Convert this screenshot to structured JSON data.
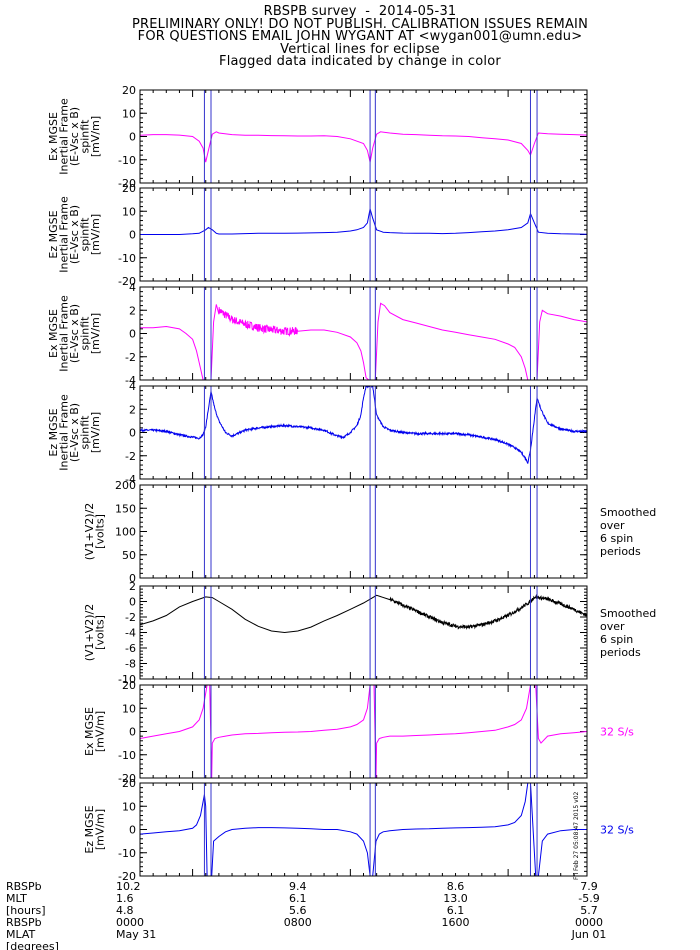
{
  "header": {
    "title": "RBSPB survey  -  2014-05-31",
    "line2": "PRELIMINARY ONLY! DO NOT PUBLISH. CALIBRATION ISSUES REMAIN",
    "line3": "FOR QUESTIONS EMAIL JOHN WYGANT AT <wygan001@umn.edu>",
    "line4": "Vertical lines for eclipse",
    "line5": "Flagged data indicated by change in color"
  },
  "colors": {
    "magenta": "#ff00ff",
    "blue": "#0000ee",
    "black": "#000000",
    "eclipse": "#3333cc"
  },
  "stamp": "Fri Feb 27 05:08:47 2015 v02",
  "eclipse_hours": [
    4.9,
    5.4,
    17.5,
    17.9,
    29.7,
    30.2
  ],
  "chart_data": [
    {
      "type": "line",
      "color": "magenta",
      "ylabel": [
        "Ex MGSE",
        "Inertial Frame",
        "(E-Vsc x B)",
        "spinfit",
        "[mV/m]"
      ],
      "ylim": [
        -20,
        20
      ],
      "yticks": [
        20,
        10,
        0,
        -10,
        -20
      ],
      "side_label": [],
      "series": [
        {
          "x": [
            0,
            1,
            2,
            3,
            4,
            4.5,
            4.8,
            5,
            5.2,
            5.5,
            5.8,
            6,
            7,
            8,
            9,
            10,
            11,
            12,
            13,
            14,
            15,
            16,
            17,
            17.3,
            17.5,
            17.7,
            18,
            18.3,
            19,
            20,
            21,
            22,
            23,
            24,
            25,
            26,
            27,
            28,
            29,
            29.5,
            29.7,
            30,
            30.3,
            31,
            32,
            33,
            34
          ],
          "y": [
            0.5,
            0.8,
            0.8,
            0.6,
            0,
            -2,
            -5,
            -11,
            -6,
            1,
            2,
            1.5,
            0.8,
            0.5,
            0.5,
            0.4,
            0.3,
            0.2,
            0.2,
            0.3,
            0,
            -1,
            -3,
            -6,
            -11,
            -5,
            1,
            2,
            1.5,
            1,
            0.8,
            0.5,
            0.3,
            0.2,
            0,
            -0.5,
            -1,
            -1.5,
            -3,
            -6,
            -8,
            -3,
            1.5,
            1.2,
            1,
            0.8,
            0.6
          ]
        }
      ]
    },
    {
      "type": "line",
      "color": "blue",
      "ylabel": [
        "Ez MGSE",
        "Inertial Frame",
        "(E-Vsc x B)",
        "spinfit",
        "[mV/m]"
      ],
      "ylim": [
        -20,
        20
      ],
      "yticks": [
        20,
        10,
        0,
        -10,
        -20
      ],
      "side_label": [],
      "series": [
        {
          "x": [
            0,
            1,
            2,
            3,
            4,
            4.5,
            5,
            5.2,
            5.5,
            5.8,
            6,
            7,
            8,
            9,
            10,
            11,
            12,
            13,
            14,
            15,
            16,
            16.5,
            17,
            17.3,
            17.5,
            17.7,
            18,
            18.5,
            19,
            20,
            21,
            22,
            23,
            24,
            25,
            26,
            27,
            28,
            29,
            29.5,
            29.7,
            30,
            30.3,
            31,
            32,
            33,
            34
          ],
          "y": [
            0,
            0,
            0,
            0,
            0.3,
            0.5,
            2,
            3,
            2,
            0.5,
            0.2,
            0.2,
            0.4,
            0.5,
            0.5,
            0.5,
            0.6,
            0.7,
            0.8,
            1,
            1.5,
            2,
            3,
            5,
            11,
            7,
            2,
            1,
            0.8,
            0.6,
            0.5,
            0.5,
            0.4,
            0.5,
            0.8,
            1.2,
            1.5,
            2,
            3,
            5,
            9,
            5,
            1,
            0.5,
            0.3,
            0.2,
            0.1
          ]
        }
      ]
    },
    {
      "type": "line",
      "color": "magenta",
      "ylabel": [
        "Ex MGSE",
        "Inertial Frame",
        "(E-Vsc x B)",
        "spinfit",
        "[mV/m]"
      ],
      "ylim": [
        -4,
        4
      ],
      "yticks": [
        4,
        2,
        0,
        -2,
        -4
      ],
      "side_label": [],
      "noisy": [
        6,
        12,
        0.35
      ],
      "series": [
        {
          "x": [
            0,
            1,
            2,
            3,
            3.5,
            4,
            4.3,
            4.6,
            4.8,
            5.4,
            5.6,
            5.8,
            6,
            6.5,
            7,
            8,
            9,
            10,
            11,
            12,
            13,
            14,
            15,
            16,
            16.5,
            16.8,
            17,
            17.2,
            17.4,
            17.9,
            18.1,
            18.3,
            18.6,
            19,
            20,
            21,
            22,
            23,
            24,
            25,
            26,
            27,
            28,
            28.5,
            29,
            29.3,
            29.5,
            30.2,
            30.4,
            30.6,
            31,
            32,
            33,
            34
          ],
          "y": [
            0.5,
            0.5,
            0.6,
            0.4,
            0,
            -0.5,
            -1.5,
            -3,
            -4,
            -4,
            1,
            2.5,
            2,
            1.6,
            1.2,
            0.8,
            0.5,
            0.3,
            0.2,
            0.2,
            0.3,
            0.3,
            0.1,
            -0.3,
            -0.8,
            -1.5,
            -2.5,
            -3.8,
            -4,
            -4,
            1,
            2.6,
            2.4,
            1.8,
            1.2,
            0.9,
            0.6,
            0.3,
            0.1,
            -0.1,
            -0.3,
            -0.5,
            -0.9,
            -1.2,
            -2,
            -3,
            -4,
            -4,
            1,
            2,
            1.7,
            1.5,
            1.2,
            1
          ]
        }
      ]
    },
    {
      "type": "line",
      "color": "blue",
      "ylabel": [
        "Ez MGSE",
        "Inertial Frame",
        "(E-Vsc x B)",
        "spinfit",
        "[mV/m]"
      ],
      "ylim": [
        -4,
        4
      ],
      "yticks": [
        4,
        2,
        0,
        -2,
        -4
      ],
      "side_label": [],
      "noisy": [
        0,
        34,
        0.08
      ],
      "series": [
        {
          "x": [
            0,
            1,
            2,
            3,
            3.5,
            4,
            4.5,
            4.8,
            5,
            5.2,
            5.4,
            5.7,
            6,
            6.5,
            7,
            8,
            9,
            10,
            11,
            12,
            13,
            14,
            15,
            15.5,
            16,
            16.5,
            16.8,
            17,
            17.2,
            17.4,
            17.7,
            18,
            18.5,
            19,
            20,
            21,
            22,
            23,
            24,
            25,
            26,
            27,
            28,
            28.5,
            29,
            29.3,
            29.5,
            29.7,
            30.2,
            30.5,
            31,
            32,
            33,
            34
          ],
          "y": [
            0.2,
            0.2,
            0.1,
            -0.2,
            -0.3,
            -0.4,
            -0.5,
            -0.2,
            0.5,
            2,
            3.5,
            2,
            1,
            0,
            -0.3,
            0.2,
            0.4,
            0.5,
            0.6,
            0.5,
            0.4,
            0.2,
            -0.3,
            -0.4,
            0,
            0.6,
            1.5,
            3,
            4,
            4,
            4,
            1.5,
            0.5,
            0.2,
            0,
            -0.1,
            -0.1,
            -0.1,
            -0.1,
            -0.2,
            -0.4,
            -0.6,
            -1,
            -1.3,
            -1.7,
            -2.2,
            -2.6,
            -1.5,
            3,
            2,
            0.8,
            0.3,
            0.1,
            0.1
          ]
        }
      ]
    },
    {
      "type": "line",
      "color": "black",
      "ylabel": [
        "(V1+V2)/2",
        "[volts]"
      ],
      "ylim": [
        0,
        200
      ],
      "yticks": [
        200,
        150,
        100,
        50,
        0
      ],
      "side_label": [
        "Smoothed",
        "over",
        "6 spin",
        "periods"
      ],
      "series": [
        {
          "x": [
            0,
            34
          ],
          "y": [
            0,
            0
          ]
        }
      ]
    },
    {
      "type": "line",
      "color": "black",
      "ylabel": [
        "(V1+V2)/2",
        "[volts]"
      ],
      "ylim": [
        -10,
        2
      ],
      "yticks": [
        2,
        0,
        -2,
        -4,
        -6,
        -8,
        -10
      ],
      "side_label": [
        "Smoothed",
        "over",
        "6 spin",
        "periods"
      ],
      "noisy": [
        19,
        34,
        0.15
      ],
      "series": [
        {
          "x": [
            0,
            1,
            2,
            3,
            4,
            5,
            5.5,
            6,
            7,
            8,
            9,
            10,
            11,
            12,
            13,
            14,
            15,
            16,
            17,
            17.5,
            18,
            19,
            20,
            21,
            22,
            23,
            24,
            25,
            26,
            27,
            28,
            29,
            29.7,
            30,
            31,
            32,
            33,
            34
          ],
          "y": [
            -3,
            -2.5,
            -1.8,
            -0.7,
            0,
            0.6,
            0.5,
            0,
            -1,
            -2.3,
            -3.2,
            -3.8,
            -4,
            -3.8,
            -3.3,
            -2.5,
            -1.8,
            -1,
            -0.2,
            0.3,
            0.8,
            0.3,
            -0.5,
            -1.2,
            -2,
            -2.7,
            -3.2,
            -3.3,
            -3,
            -2.5,
            -1.8,
            -0.8,
            0,
            0.6,
            0.3,
            -0.3,
            -1,
            -1.8
          ]
        }
      ]
    },
    {
      "type": "line",
      "color": "magenta",
      "ylabel": [
        "Ex MGSE",
        "[mV/m]"
      ],
      "ylim": [
        -20,
        20
      ],
      "yticks": [
        20,
        10,
        0,
        -10,
        -20
      ],
      "side_label": [
        "32 S/s"
      ],
      "side_color": "magenta",
      "series": [
        {
          "x": [
            0,
            1,
            2,
            3,
            4,
            4.5,
            4.8,
            5.1,
            5.3,
            5.45,
            5.5,
            5.7,
            6,
            6.5,
            7,
            8,
            9,
            10,
            11,
            12,
            13,
            14,
            15,
            16,
            16.5,
            17,
            17.3,
            17.5,
            17.8,
            17.95,
            18,
            18.2,
            18.5,
            19,
            20,
            21,
            22,
            23,
            24,
            25,
            26,
            27,
            28,
            28.5,
            29,
            29.4,
            29.7,
            30.1,
            30.3,
            30.5,
            31,
            32,
            33,
            34
          ],
          "y": [
            -3,
            -2,
            -1,
            0,
            2,
            5,
            10,
            20,
            20,
            -20,
            -5,
            -3,
            -2.5,
            -2,
            -1.5,
            -1,
            -0.8,
            -0.5,
            -0.3,
            -0.2,
            0,
            0.5,
            1,
            2,
            3,
            5,
            10,
            20,
            20,
            -20,
            -5,
            -3,
            -2.5,
            -2,
            -2,
            -1.7,
            -1.5,
            -1.2,
            -1,
            -0.5,
            0,
            0.5,
            2,
            3,
            5,
            10,
            20,
            20,
            -3,
            -5,
            -2,
            -1,
            -0.5,
            0
          ]
        }
      ]
    },
    {
      "type": "line",
      "color": "blue",
      "ylabel": [
        "Ez MGSE",
        "[mV/m]"
      ],
      "ylim": [
        -20,
        20
      ],
      "yticks": [
        20,
        10,
        0,
        -10,
        -20
      ],
      "side_label": [
        "32 S/s"
      ],
      "side_color": "blue",
      "series": [
        {
          "x": [
            0,
            1,
            2,
            3,
            4,
            4.3,
            4.6,
            4.9,
            5,
            5.1,
            5.3,
            5.45,
            5.6,
            6,
            6.5,
            7,
            8,
            9,
            10,
            11,
            12,
            13,
            14,
            15,
            16,
            16.5,
            17,
            17.3,
            17.5,
            17.7,
            17.95,
            18.2,
            18.5,
            19,
            20,
            21,
            22,
            23,
            24,
            25,
            26,
            27,
            28,
            28.5,
            29,
            29.3,
            29.5,
            29.7,
            30.1,
            30.3,
            30.6,
            31,
            32,
            33,
            34
          ],
          "y": [
            -2,
            -1.5,
            -1,
            -0.5,
            0.5,
            2,
            6,
            15,
            10,
            -20,
            -20,
            -20,
            -5,
            -3,
            -1,
            0,
            0.5,
            0.8,
            0.8,
            0.7,
            0.5,
            0.3,
            0,
            0,
            -1,
            -2,
            -5,
            -10,
            -20,
            -20,
            -5,
            -2,
            -1,
            -0.5,
            0,
            0.2,
            0.3,
            0.5,
            0.7,
            0.8,
            1,
            1.2,
            2,
            3,
            6,
            12,
            20,
            20,
            -20,
            -20,
            -5,
            -2,
            -0.5,
            0,
            0
          ]
        }
      ]
    }
  ],
  "time_axis": {
    "xlim": [
      0,
      34
    ],
    "major_ticks": [
      4,
      16,
      28
    ],
    "row_labels": [
      "RBSPb",
      "MLT",
      "[hours]",
      "RBSPb",
      "MLAT",
      "[degrees]"
    ],
    "columns": [
      {
        "x": 0,
        "values": [
          "10.2",
          "1.6",
          "4.8",
          "0000",
          "May 31"
        ]
      },
      {
        "x": 12,
        "values": [
          "9.4",
          "6.1",
          "5.6",
          "0800",
          ""
        ]
      },
      {
        "x": 24,
        "values": [
          "8.6",
          "13.0",
          "6.1",
          "1600",
          ""
        ]
      },
      {
        "x": 34,
        "values": [
          "7.9",
          "-5.9",
          "5.7",
          "0000",
          "Jun 01"
        ]
      }
    ]
  }
}
